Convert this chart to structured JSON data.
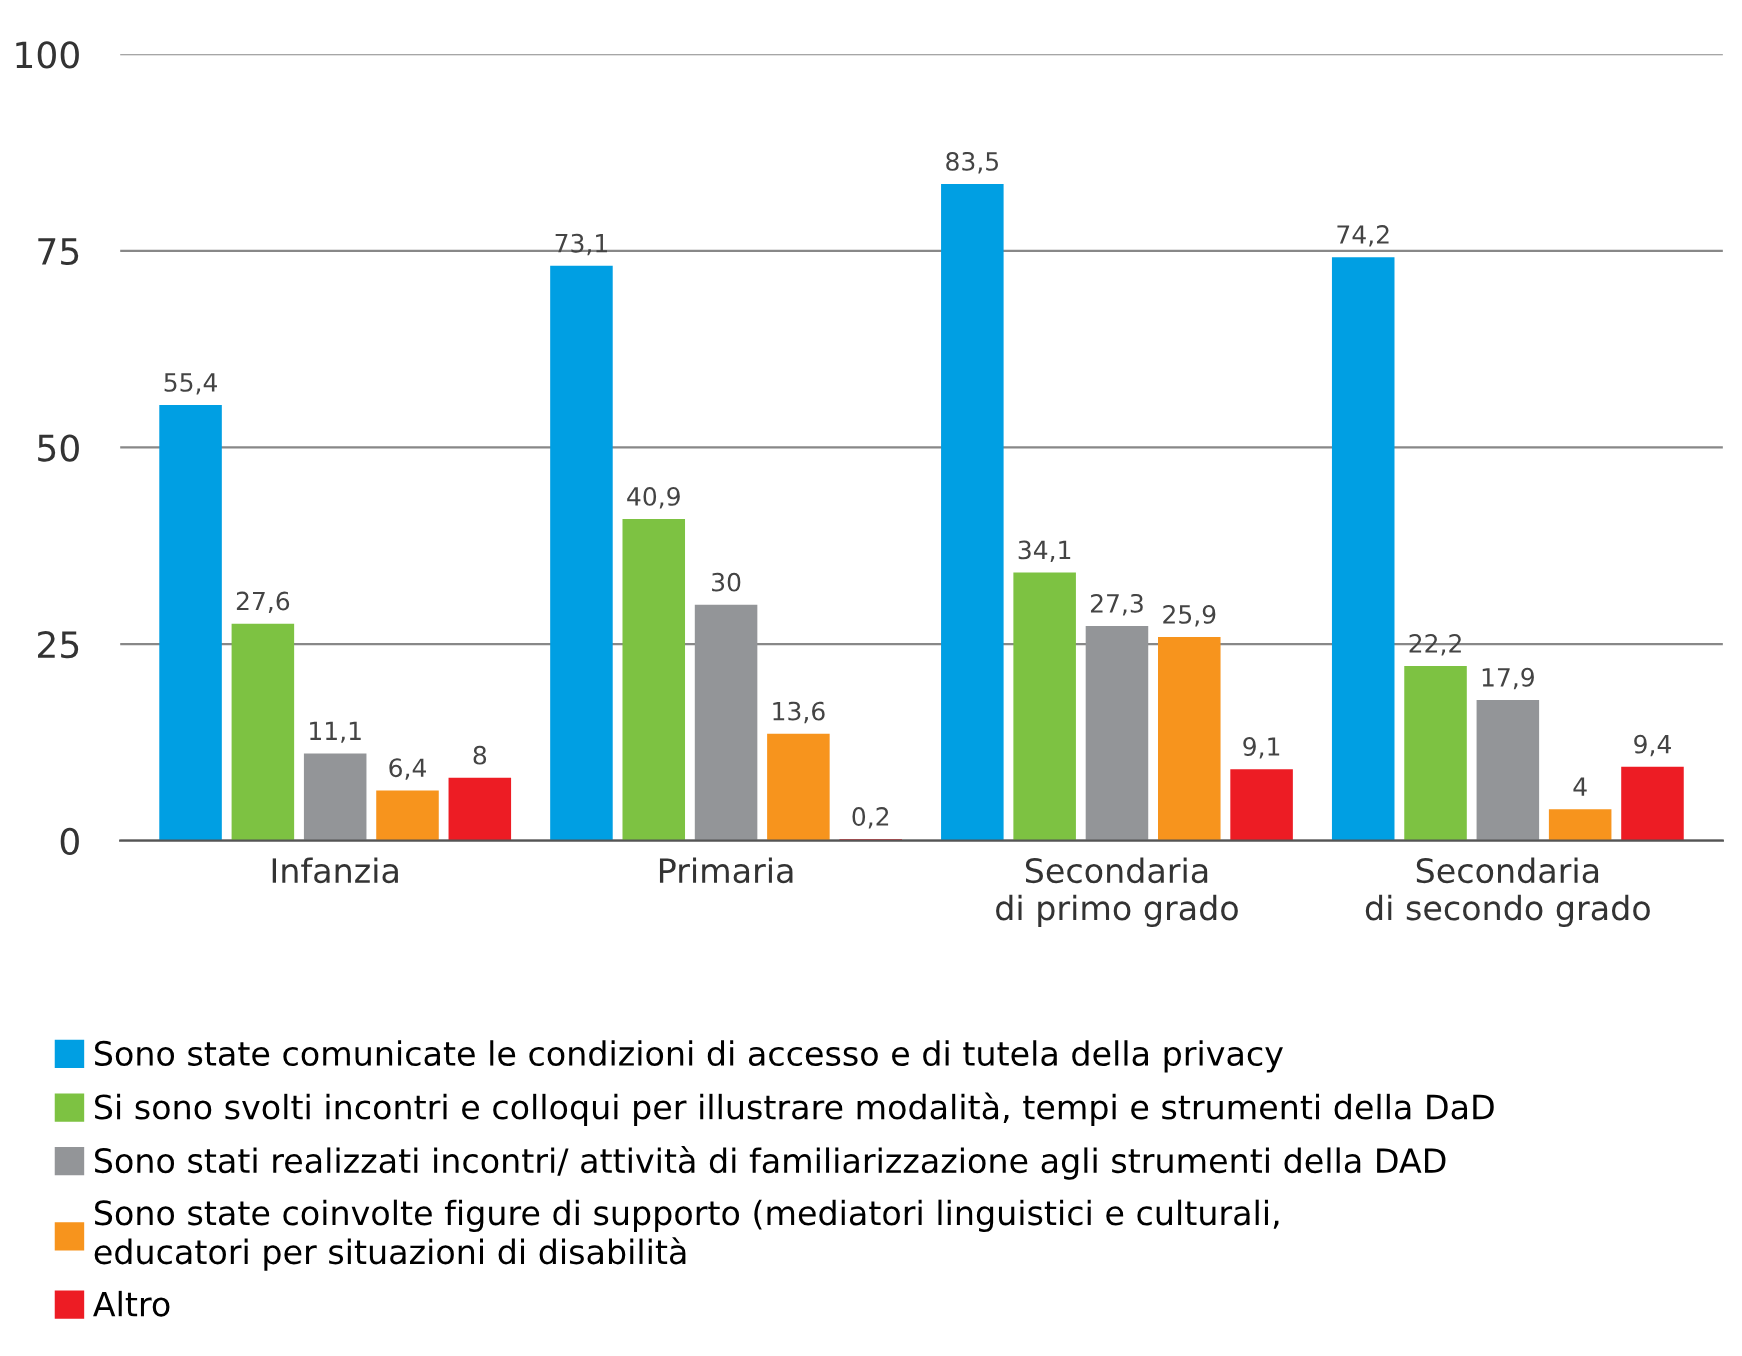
{
  "chart_data": {
    "type": "bar",
    "categories": [
      "Infanzia",
      "Primaria",
      "Secondaria\ndi primo grado",
      "Secondaria\ndi secondo grado"
    ],
    "series": [
      {
        "name": "Sono state comunicate le condizioni di accesso e di tutela della privacy",
        "color": "#009fe3",
        "values": [
          55.4,
          73.1,
          83.5,
          74.2
        ],
        "value_labels": [
          "55,4",
          "73,1",
          "83,5",
          "74,2"
        ]
      },
      {
        "name": "Si sono svolti incontri e colloqui per illustrare modalità, tempi e strumenti della DaD",
        "color": "#7dc242",
        "values": [
          27.6,
          40.9,
          34.1,
          22.2
        ],
        "value_labels": [
          "27,6",
          "40,9",
          "34,1",
          "22,2"
        ]
      },
      {
        "name": "Sono stati realizzati incontri/ attività di familiarizzazione agli strumenti della DAD",
        "color": "#939598",
        "values": [
          11.1,
          30,
          27.3,
          17.9
        ],
        "value_labels": [
          "11,1",
          "30",
          "27,3",
          "17,9"
        ]
      },
      {
        "name": "Sono state coinvolte figure di supporto (mediatori linguistici e culturali,\neducatori per situazioni di disabilità",
        "color": "#f7941d",
        "values": [
          6.4,
          13.6,
          25.9,
          4
        ],
        "value_labels": [
          "6,4",
          "13,6",
          "25,9",
          "4"
        ]
      },
      {
        "name": "Altro",
        "color": "#ed1c24",
        "values": [
          8,
          0.2,
          9.1,
          9.4
        ],
        "value_labels": [
          "8",
          "0,2",
          "9,1",
          "9,4"
        ]
      }
    ],
    "ylim": [
      0,
      100
    ],
    "yticks": [
      0,
      25,
      50,
      75,
      100
    ],
    "grid": "y",
    "legend": "bottom"
  }
}
